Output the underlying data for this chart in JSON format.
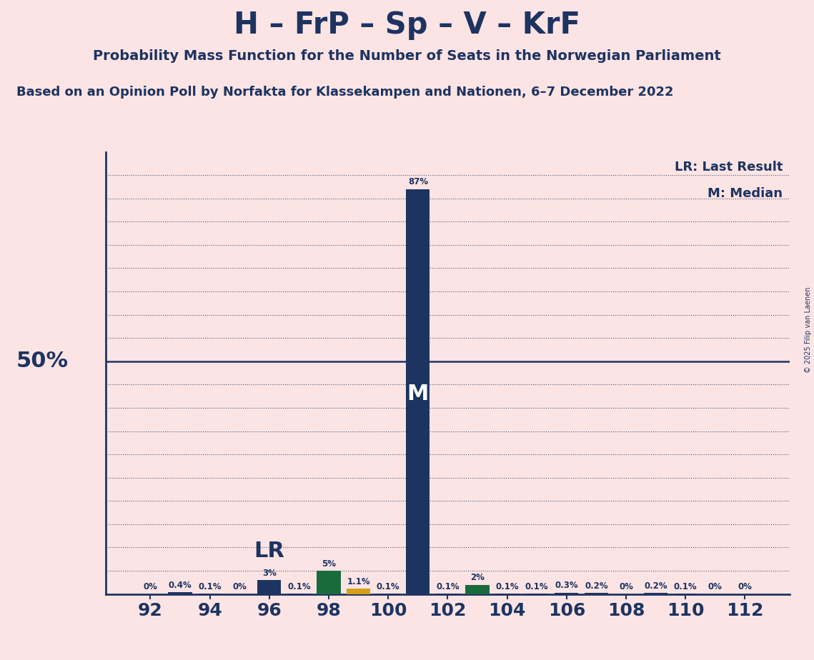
{
  "title": "H – FrP – Sp – V – KrF",
  "subtitle": "Probability Mass Function for the Number of Seats in the Norwegian Parliament",
  "source": "Based on an Opinion Poll by Norfakta for Klassekampen and Nationen, 6–7 December 2022",
  "copyright": "© 2025 Filip van Laenen",
  "legend_lr": "LR: Last Result",
  "legend_m": "M: Median",
  "lr_label": "LR",
  "m_label": "M",
  "seats": [
    92,
    93,
    94,
    95,
    96,
    97,
    98,
    99,
    100,
    101,
    102,
    103,
    104,
    105,
    106,
    107,
    108,
    109,
    110,
    111,
    112
  ],
  "probabilities": [
    0.0,
    0.4,
    0.1,
    0.0,
    3.0,
    0.1,
    5.0,
    1.1,
    0.1,
    87.0,
    0.1,
    2.0,
    0.1,
    0.1,
    0.3,
    0.2,
    0.0,
    0.2,
    0.1,
    0.0,
    0.0
  ],
  "bar_colors": [
    "#1d3461",
    "#1d3461",
    "#1d3461",
    "#1d3461",
    "#1d3461",
    "#1d3461",
    "#1a6b3c",
    "#d4a017",
    "#1d3461",
    "#1d3461",
    "#1d3461",
    "#1a6b3c",
    "#1d3461",
    "#1d3461",
    "#1d3461",
    "#1d3461",
    "#1d3461",
    "#1d3461",
    "#1d3461",
    "#1d3461",
    "#1d3461"
  ],
  "lr_seat": 96,
  "median_seat": 101,
  "fifty_pct_line": 50,
  "bg_color": "#fce4e4",
  "bar_main_color": "#1d3461",
  "axis_color": "#1d3461",
  "text_color": "#1d3461",
  "grid_color": "#1d3461",
  "ylim": [
    0,
    95
  ],
  "xlim_left": 90.5,
  "xlim_right": 113.5,
  "xtick_values": [
    92,
    94,
    96,
    98,
    100,
    102,
    104,
    106,
    108,
    110,
    112
  ],
  "dotted_lines": [
    10,
    20,
    30,
    40,
    60,
    70,
    80,
    90
  ],
  "extra_dotted_lines": [
    5,
    15,
    25,
    35,
    45,
    55,
    65,
    75,
    85
  ]
}
